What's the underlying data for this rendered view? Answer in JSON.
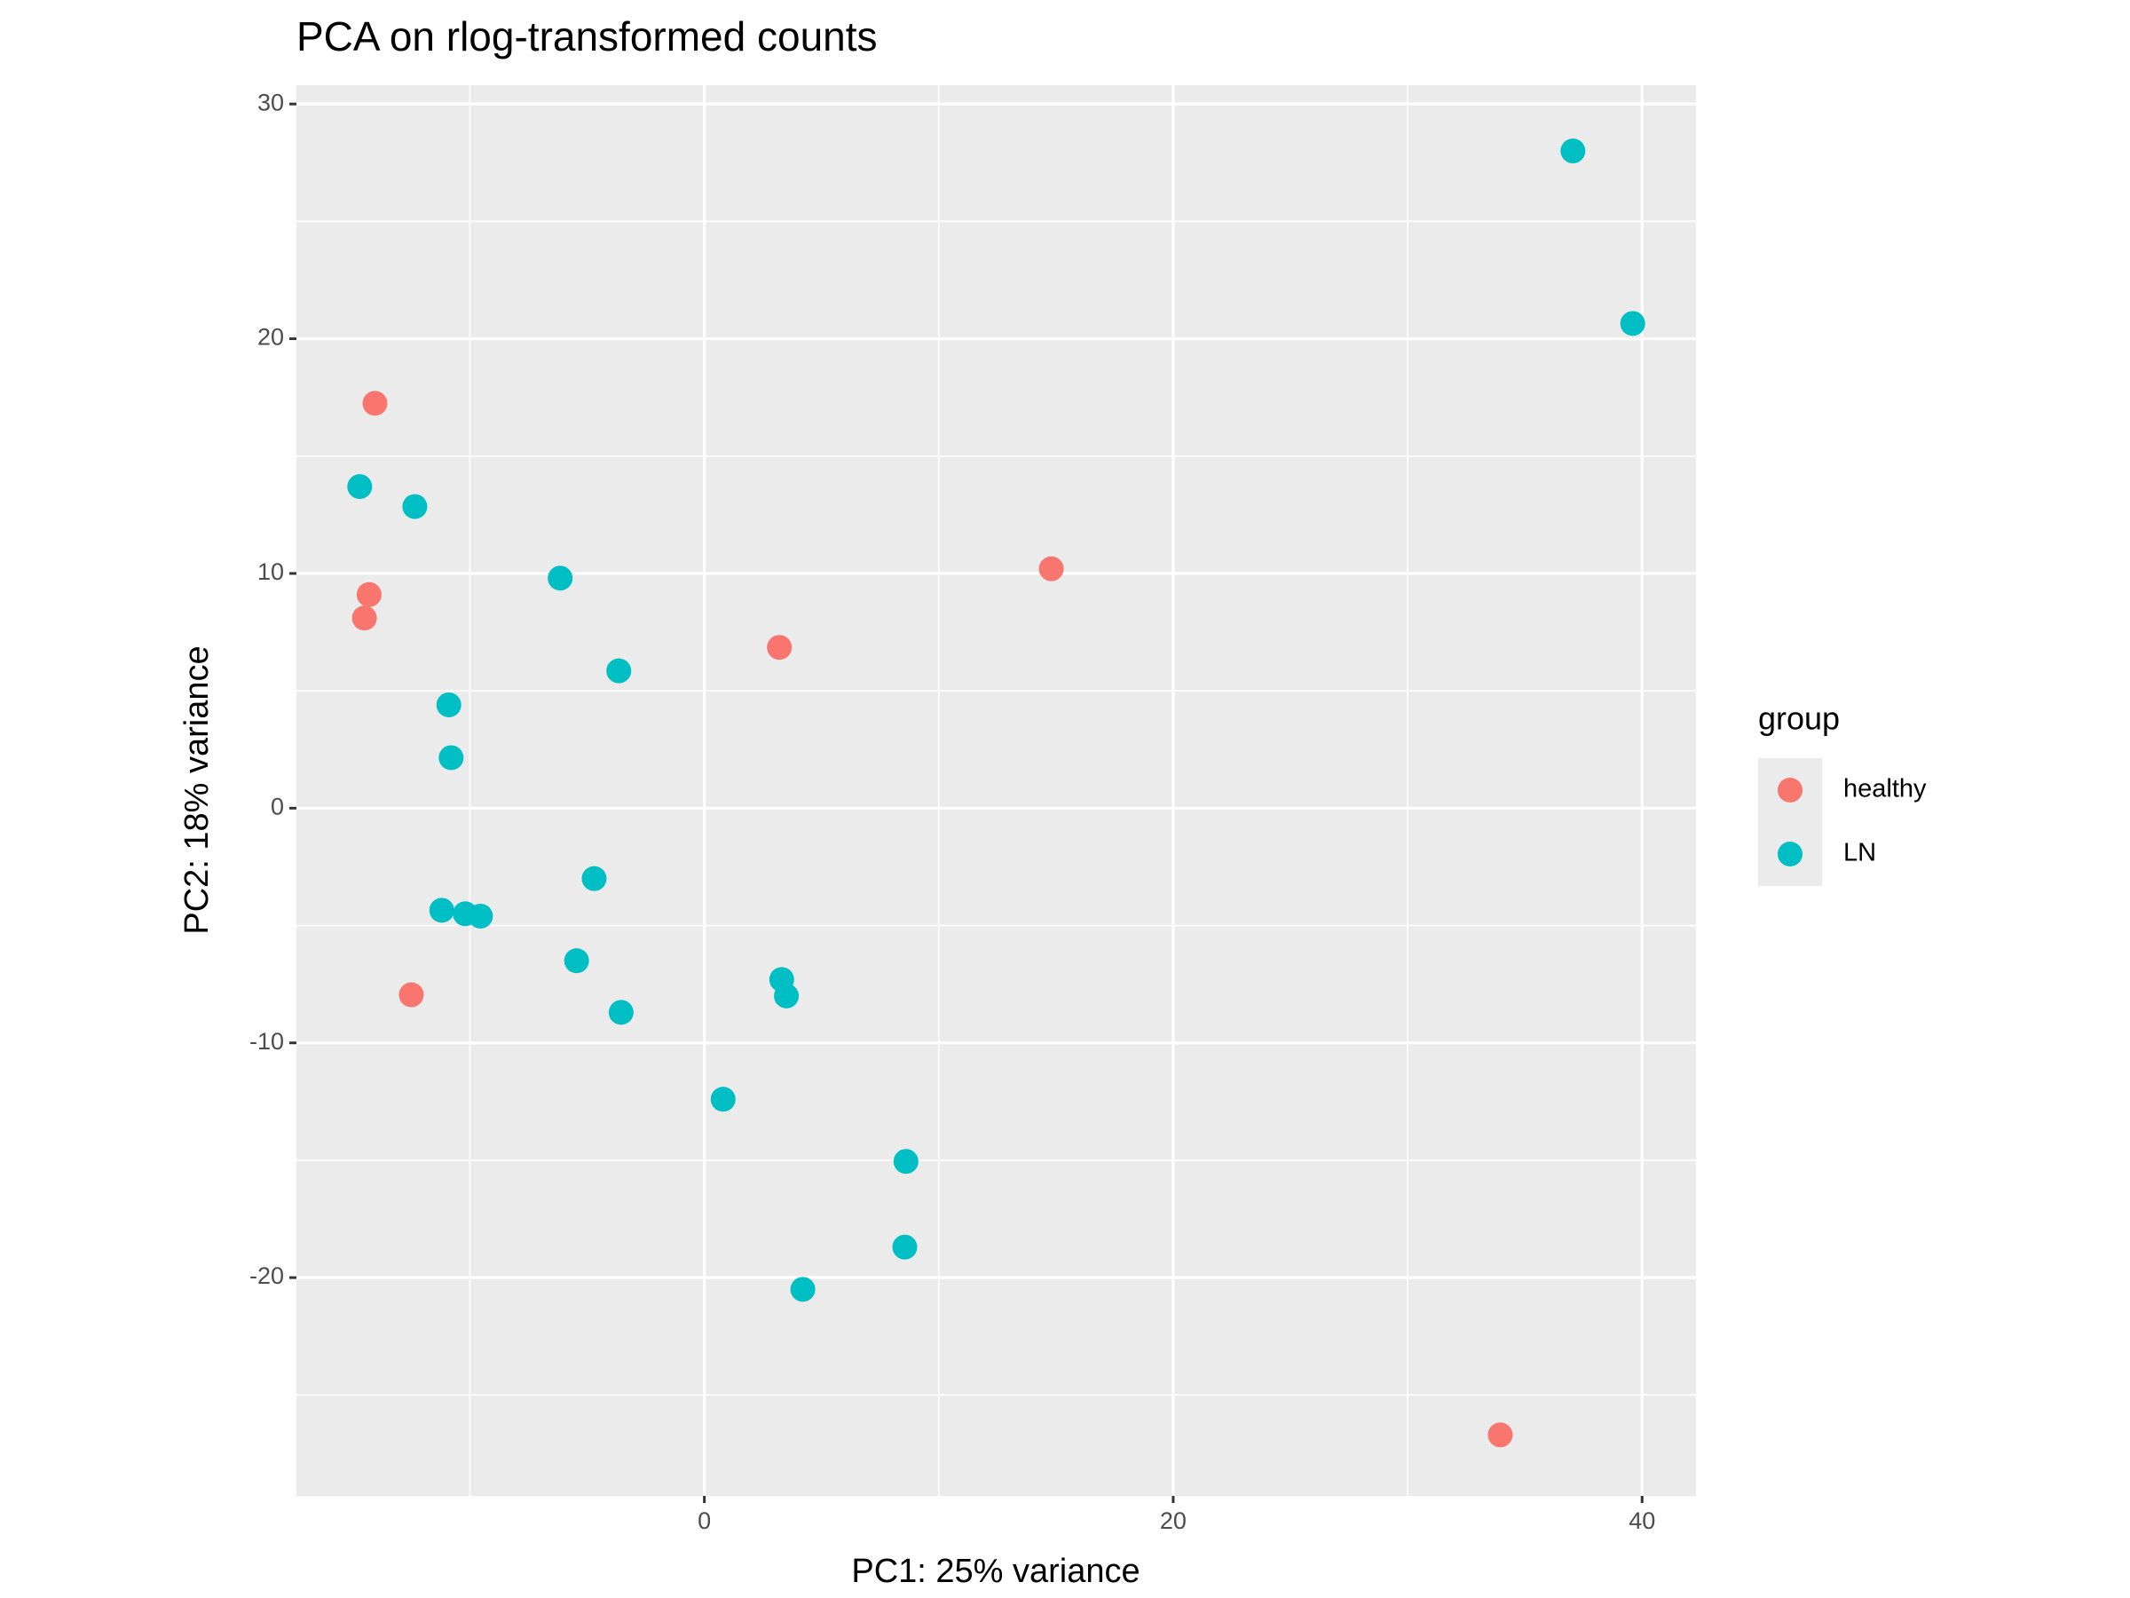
{
  "chart_data": {
    "type": "scatter",
    "title": "PCA on rlog-transformed counts",
    "x_label": "PC1: 25% variance",
    "y_label": "PC2: 18% variance",
    "legend_title": "group",
    "legend_position": "right",
    "xlim": [
      -17.4,
      42.3
    ],
    "ylim": [
      -29.3,
      30.8
    ],
    "xticks": [
      0,
      20,
      40
    ],
    "yticks": [
      -20,
      -10,
      0,
      10,
      20,
      30
    ],
    "x_minor_breaks": [
      -10,
      10,
      30
    ],
    "y_minor_breaks": [
      -25,
      -15,
      -5,
      5,
      15,
      25
    ],
    "grid": true,
    "series": [
      {
        "name": "healthy",
        "color": "#f8766d",
        "x": [
          -14.05,
          -14.3,
          -14.5,
          -12.5,
          3.2,
          14.8,
          33.95
        ],
        "values": [
          17.25,
          9.1,
          8.1,
          -7.95,
          6.85,
          10.2,
          -26.7
        ]
      },
      {
        "name": "LN",
        "color": "#00bfc4",
        "x": [
          37.05,
          39.6,
          -14.7,
          -12.35,
          -6.15,
          -3.65,
          -10.9,
          -10.8,
          -4.7,
          -11.2,
          -10.2,
          -9.55,
          -5.45,
          -3.55,
          3.3,
          3.5,
          0.8,
          8.6,
          8.55,
          4.2
        ],
        "values": [
          28.0,
          20.65,
          13.7,
          12.85,
          9.8,
          5.85,
          4.4,
          2.15,
          -3.0,
          -4.35,
          -4.5,
          -4.6,
          -6.5,
          -8.7,
          -7.3,
          -8.0,
          -12.4,
          -15.05,
          -18.7,
          -20.5
        ]
      }
    ]
  }
}
